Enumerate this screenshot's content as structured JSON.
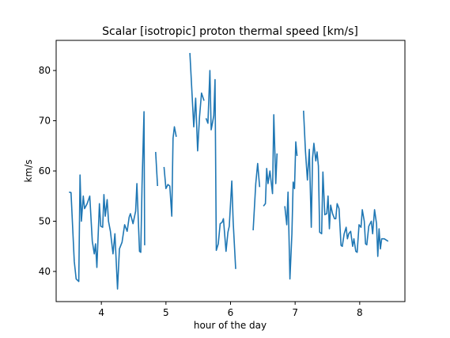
{
  "chart_data": {
    "type": "line",
    "title": "Scalar [isotropic] proton thermal speed [km/s]",
    "xlabel": "hour of the day",
    "ylabel": "km/s",
    "xlim": [
      3.3,
      8.7
    ],
    "ylim": [
      34,
      86
    ],
    "xticks": [
      4,
      5,
      6,
      7,
      8
    ],
    "yticks": [
      40,
      50,
      60,
      70,
      80
    ],
    "grid": false,
    "line_color": "#1f77b4",
    "segments": [
      [
        [
          3.5,
          55.8
        ],
        [
          3.53,
          55.7
        ],
        [
          3.58,
          42.0
        ],
        [
          3.61,
          38.5
        ],
        [
          3.65,
          38.0
        ],
        [
          3.67,
          59.2
        ],
        [
          3.69,
          50.0
        ],
        [
          3.72,
          55.0
        ],
        [
          3.74,
          52.5
        ],
        [
          3.78,
          53.5
        ],
        [
          3.82,
          55.0
        ],
        [
          3.86,
          46.0
        ],
        [
          3.89,
          43.5
        ],
        [
          3.91,
          45.5
        ],
        [
          3.93,
          40.8
        ],
        [
          3.97,
          53.5
        ],
        [
          3.99,
          49.0
        ],
        [
          4.02,
          48.8
        ],
        [
          4.04,
          55.3
        ],
        [
          4.06,
          51.0
        ],
        [
          4.09,
          54.3
        ],
        [
          4.11,
          50.0
        ],
        [
          4.14,
          48.0
        ],
        [
          4.18,
          43.5
        ],
        [
          4.21,
          47.5
        ],
        [
          4.25,
          36.5
        ],
        [
          4.28,
          44.5
        ],
        [
          4.32,
          45.8
        ],
        [
          4.36,
          49.3
        ],
        [
          4.4,
          48.0
        ],
        [
          4.43,
          50.8
        ],
        [
          4.45,
          51.5
        ],
        [
          4.49,
          49.5
        ],
        [
          4.53,
          52.0
        ],
        [
          4.55,
          57.5
        ],
        [
          4.59,
          44.0
        ],
        [
          4.61,
          43.8
        ],
        [
          4.63,
          57.2
        ],
        [
          4.66,
          71.8
        ],
        [
          4.67,
          45.2
        ]
      ],
      [
        [
          4.84,
          63.8
        ],
        [
          4.87,
          57.0
        ]
      ],
      [
        [
          4.97,
          60.8
        ],
        [
          5.0,
          56.5
        ],
        [
          5.03,
          57.3
        ],
        [
          5.06,
          57.0
        ],
        [
          5.09,
          51.0
        ],
        [
          5.11,
          66.5
        ],
        [
          5.13,
          68.8
        ],
        [
          5.16,
          66.8
        ]
      ],
      [
        [
          5.37,
          83.5
        ],
        [
          5.43,
          68.8
        ],
        [
          5.46,
          74.5
        ],
        [
          5.49,
          64.0
        ],
        [
          5.52,
          70.8
        ],
        [
          5.55,
          75.5
        ],
        [
          5.59,
          74.0
        ]
      ],
      [
        [
          5.62,
          70.5
        ],
        [
          5.65,
          69.5
        ],
        [
          5.68,
          80.0
        ],
        [
          5.7,
          68.2
        ],
        [
          5.72,
          69.5
        ],
        [
          5.74,
          71.0
        ],
        [
          5.76,
          78.2
        ],
        [
          5.78,
          44.2
        ],
        [
          5.81,
          45.5
        ],
        [
          5.84,
          49.5
        ],
        [
          5.87,
          49.8
        ],
        [
          5.89,
          50.5
        ],
        [
          5.93,
          44.0
        ],
        [
          5.96,
          47.8
        ],
        [
          5.98,
          49.0
        ],
        [
          6.02,
          58.0
        ],
        [
          6.04,
          50.0
        ],
        [
          6.08,
          40.5
        ]
      ],
      [
        [
          6.35,
          48.2
        ],
        [
          6.39,
          57.5
        ],
        [
          6.42,
          61.5
        ],
        [
          6.45,
          56.8
        ]
      ],
      [
        [
          6.51,
          53.0
        ],
        [
          6.54,
          53.5
        ],
        [
          6.56,
          60.5
        ],
        [
          6.58,
          57.5
        ],
        [
          6.61,
          60.0
        ],
        [
          6.65,
          55.5
        ],
        [
          6.67,
          71.2
        ],
        [
          6.7,
          57.5
        ],
        [
          6.72,
          63.5
        ]
      ],
      [
        [
          6.84,
          53.0
        ],
        [
          6.87,
          49.3
        ],
        [
          6.89,
          55.8
        ],
        [
          6.92,
          38.5
        ],
        [
          6.95,
          47.5
        ],
        [
          6.97,
          57.8
        ],
        [
          6.99,
          56.5
        ],
        [
          7.01,
          65.8
        ],
        [
          7.03,
          63.0
        ]
      ],
      [
        [
          7.13,
          72.0
        ],
        [
          7.16,
          64.0
        ],
        [
          7.19,
          58.2
        ],
        [
          7.22,
          64.3
        ],
        [
          7.25,
          48.8
        ],
        [
          7.27,
          62.5
        ],
        [
          7.29,
          65.5
        ],
        [
          7.32,
          62.0
        ],
        [
          7.34,
          63.8
        ],
        [
          7.36,
          61.0
        ],
        [
          7.38,
          47.8
        ],
        [
          7.41,
          47.5
        ],
        [
          7.43,
          59.8
        ],
        [
          7.46,
          51.3
        ],
        [
          7.49,
          51.5
        ],
        [
          7.51,
          55.0
        ],
        [
          7.53,
          48.5
        ],
        [
          7.55,
          53.2
        ],
        [
          7.58,
          51.5
        ],
        [
          7.61,
          50.5
        ],
        [
          7.63,
          50.5
        ],
        [
          7.65,
          53.5
        ],
        [
          7.68,
          52.5
        ],
        [
          7.71,
          45.2
        ],
        [
          7.73,
          45.0
        ],
        [
          7.76,
          47.5
        ],
        [
          7.79,
          48.8
        ],
        [
          7.81,
          46.5
        ],
        [
          7.83,
          47.5
        ],
        [
          7.86,
          48.0
        ],
        [
          7.89,
          45.0
        ],
        [
          7.91,
          46.5
        ],
        [
          7.94,
          44.0
        ],
        [
          7.96,
          43.8
        ],
        [
          7.99,
          49.3
        ],
        [
          8.02,
          48.8
        ],
        [
          8.04,
          52.3
        ],
        [
          8.07,
          50.0
        ],
        [
          8.09,
          45.5
        ],
        [
          8.11,
          45.3
        ],
        [
          8.14,
          49.0
        ],
        [
          8.18,
          50.0
        ],
        [
          8.2,
          47.5
        ],
        [
          8.23,
          52.3
        ],
        [
          8.26,
          49.5
        ],
        [
          8.28,
          43.0
        ],
        [
          8.3,
          48.5
        ],
        [
          8.32,
          44.5
        ],
        [
          8.34,
          46.5
        ],
        [
          8.38,
          46.5
        ],
        [
          8.44,
          46.0
        ]
      ]
    ]
  }
}
